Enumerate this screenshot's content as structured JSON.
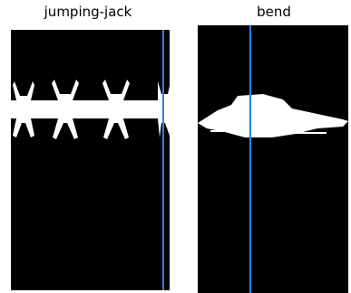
{
  "panels": [
    {
      "label": "jumping-jack"
    },
    {
      "label": "bend"
    }
  ]
}
